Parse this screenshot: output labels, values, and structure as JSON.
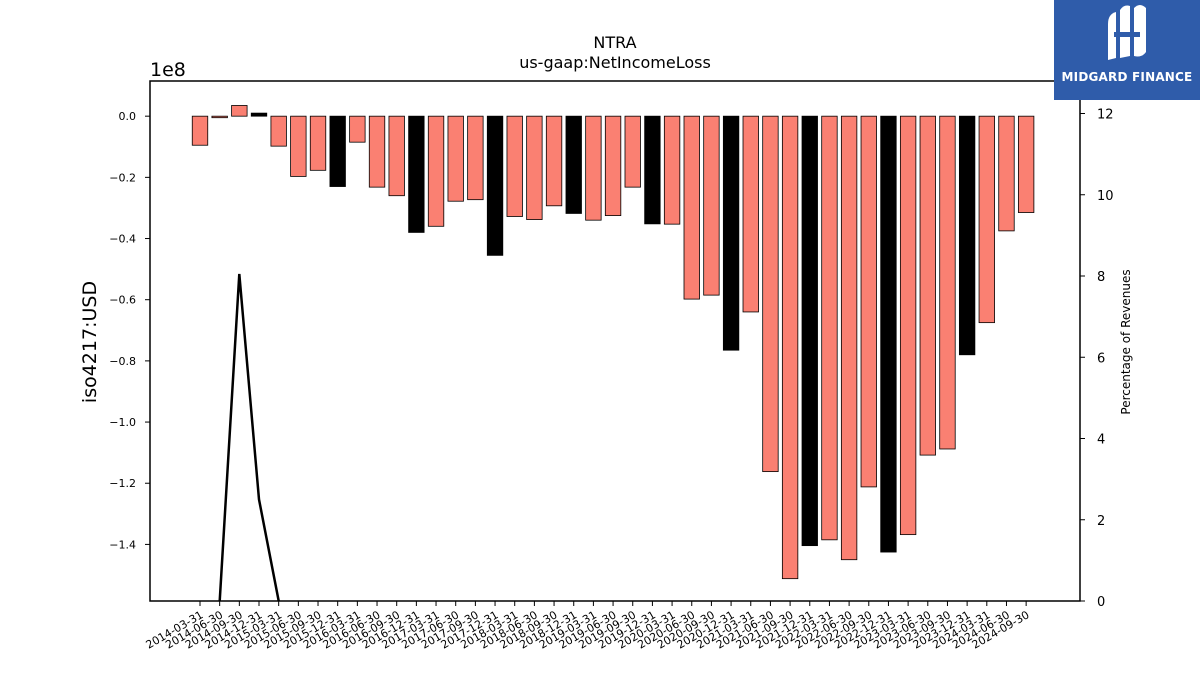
{
  "chart_data": {
    "type": "bar",
    "title": "NTRA",
    "subtitle": "us-gaap:NetIncomeLoss",
    "ylabel": "iso4217:USD",
    "y_offset_label": "1e8",
    "y2label": "Percentage of Revenues",
    "ylim": [
      -1.585,
      0.115
    ],
    "y2lim": [
      0,
      12.8
    ],
    "yticks": [
      "0.0",
      "−0.2",
      "−0.4",
      "−0.6",
      "−0.8",
      "−1.0",
      "−1.2",
      "−1.4"
    ],
    "y2ticks": [
      "0",
      "2",
      "4",
      "6",
      "8",
      "10",
      "12"
    ],
    "categories": [
      "2014-03-31",
      "2014-06-30",
      "2014-09-30",
      "2014-12-31",
      "2015-03-31",
      "2015-06-30",
      "2015-09-30",
      "2015-12-31",
      "2016-03-31",
      "2016-06-30",
      "2016-09-30",
      "2016-12-31",
      "2017-03-31",
      "2017-06-30",
      "2017-09-30",
      "2017-12-31",
      "2018-03-31",
      "2018-06-30",
      "2018-09-30",
      "2018-12-31",
      "2019-03-31",
      "2019-06-30",
      "2019-09-30",
      "2019-12-31",
      "2020-03-31",
      "2020-06-30",
      "2020-09-30",
      "2020-12-31",
      "2021-03-31",
      "2021-06-30",
      "2021-09-30",
      "2021-12-31",
      "2022-03-31",
      "2022-06-30",
      "2022-09-30",
      "2022-12-31",
      "2023-03-31",
      "2023-06-30",
      "2023-09-30",
      "2023-12-31",
      "2024-03-31",
      "2024-06-30",
      "2024-09-30"
    ],
    "values": [
      -0.095,
      -0.005,
      0.035,
      0.01,
      -0.098,
      -0.197,
      -0.177,
      -0.23,
      -0.085,
      -0.232,
      -0.26,
      -0.38,
      -0.36,
      -0.278,
      -0.273,
      -0.455,
      -0.328,
      -0.338,
      -0.293,
      -0.318,
      -0.34,
      -0.325,
      -0.232,
      -0.352,
      -0.353,
      -0.598,
      -0.585,
      -0.765,
      -0.64,
      -1.162,
      -1.512,
      -1.404,
      -1.385,
      -1.45,
      -1.212,
      -1.425,
      -1.368,
      -1.108,
      -1.088,
      -0.78,
      -0.675,
      -0.375,
      -0.315
    ],
    "highlight": [
      false,
      false,
      false,
      true,
      false,
      false,
      false,
      true,
      false,
      false,
      false,
      true,
      false,
      false,
      false,
      true,
      false,
      false,
      false,
      true,
      false,
      false,
      false,
      true,
      false,
      false,
      false,
      true,
      false,
      false,
      false,
      true,
      false,
      false,
      false,
      true,
      false,
      false,
      false,
      true,
      false,
      false,
      false
    ],
    "line_series": {
      "axis": "right",
      "x_categories": [
        "2014-06-30",
        "2014-09-30",
        "2014-12-31",
        "2015-03-31"
      ],
      "values": [
        0.0,
        8.05,
        2.5,
        0.0
      ]
    },
    "colors": {
      "bar": "#fa8072",
      "highlight_bar": "#000000",
      "line": "#000000"
    },
    "grid": false
  },
  "logo": {
    "text": "MIDGARD FINANCE",
    "background": "#2f5caa"
  }
}
